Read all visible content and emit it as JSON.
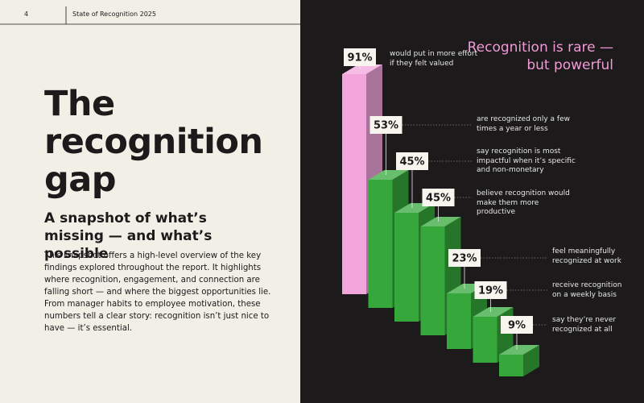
{
  "header": {
    "page_number": "4",
    "title": "State of Recognition 2025"
  },
  "left": {
    "title": "The recognition gap",
    "subtitle": "A snapshot of what’s missing — and what’s possible",
    "body": "This snapshot offers a high-level overview of the key findings explored throughout the report. It highlights where recognition, engagement, and connection are falling short — and where the biggest opportunities lie. From manager habits to employee motivation, these numbers tell a clear story: recognition isn’t just nice to have — it’s essential."
  },
  "chart_data": {
    "type": "bar",
    "title": "Recognition is rare — but powerful",
    "categories": [
      "would put in more effort if they felt valued",
      "are recognized only a few times a year or less",
      "say recognition is most impactful when it’s specific and non-monetary",
      "believe recognition would make them more productive",
      "feel meaningfully recognized at work",
      "receive recognition on a weekly basis",
      "say they’re never recognized at all"
    ],
    "values": [
      91,
      53,
      45,
      45,
      23,
      19,
      9
    ],
    "value_labels": [
      "91%",
      "53%",
      "45%",
      "45%",
      "23%",
      "19%",
      "9%"
    ],
    "colors": [
      "#f2a6dc",
      "#36a83b",
      "#36a83b",
      "#36a83b",
      "#36a83b",
      "#36a83b",
      "#36a83b"
    ]
  }
}
